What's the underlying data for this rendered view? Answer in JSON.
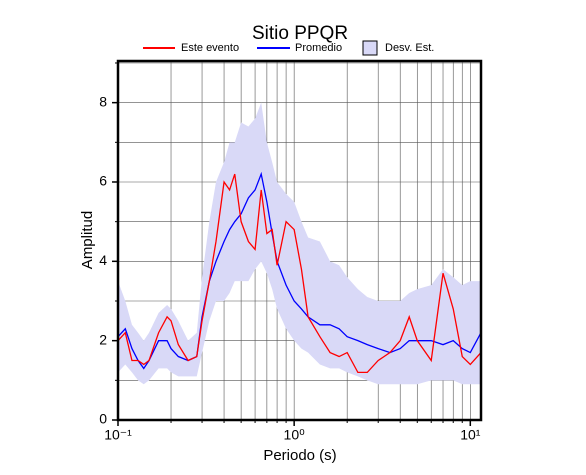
{
  "chart_data": {
    "type": "line",
    "title": "Sitio PPQR",
    "x_label": "Periodo (s)",
    "y_label": "Amplitud",
    "log_x": true,
    "grid": true,
    "xlim": [
      0.1,
      11.5
    ],
    "ylim": [
      0,
      9.05
    ],
    "xticks": [
      {
        "value": 0.1,
        "label": "10⁻¹"
      },
      {
        "value": 1,
        "label": "10⁰"
      },
      {
        "value": 10,
        "label": "10¹"
      }
    ],
    "xminor": [
      0.2,
      0.3,
      0.4,
      0.5,
      0.6,
      0.7,
      0.8,
      0.9,
      2,
      3,
      4,
      5,
      6,
      7,
      8,
      9
    ],
    "yticks": [
      0,
      2,
      4,
      6,
      8
    ],
    "yminor": [
      1,
      3,
      5,
      7,
      9
    ],
    "x": [
      0.1,
      0.11,
      0.12,
      0.13,
      0.14,
      0.15,
      0.17,
      0.19,
      0.2,
      0.22,
      0.25,
      0.28,
      0.3,
      0.33,
      0.36,
      0.4,
      0.43,
      0.46,
      0.5,
      0.55,
      0.6,
      0.65,
      0.7,
      0.75,
      0.8,
      0.9,
      1.0,
      1.1,
      1.2,
      1.4,
      1.6,
      1.8,
      2.0,
      2.3,
      2.6,
      3.0,
      3.5,
      4.0,
      4.5,
      5.0,
      6.0,
      7.0,
      8.0,
      9.0,
      10,
      11.5
    ],
    "band": {
      "name": "Desv. Est.",
      "color": "#d9d9f7",
      "upper": [
        3.5,
        3.0,
        2.4,
        2.2,
        2.0,
        2.2,
        2.7,
        2.9,
        2.8,
        2.5,
        2.0,
        2.2,
        3.6,
        5.0,
        6.0,
        6.5,
        7.0,
        7.0,
        7.5,
        7.4,
        7.6,
        8.0,
        7.0,
        6.5,
        6.0,
        5.7,
        5.5,
        5.0,
        4.6,
        4.5,
        4.0,
        3.9,
        3.6,
        3.3,
        3.1,
        3.0,
        3.0,
        3.0,
        3.2,
        3.3,
        3.4,
        3.8,
        3.6,
        3.4,
        3.5,
        3.5
      ],
      "lower": [
        1.2,
        1.4,
        1.2,
        1.0,
        0.9,
        1.0,
        1.3,
        1.3,
        1.2,
        1.1,
        1.1,
        1.1,
        1.7,
        2.5,
        3.0,
        3.0,
        3.2,
        3.5,
        3.5,
        3.5,
        3.8,
        4.0,
        3.7,
        3.3,
        2.8,
        2.3,
        2.0,
        1.8,
        1.7,
        1.4,
        1.3,
        1.3,
        1.2,
        1.1,
        1.0,
        0.9,
        0.9,
        0.9,
        0.9,
        0.9,
        1.0,
        1.0,
        1.0,
        0.9,
        0.9,
        0.9
      ]
    },
    "series": [
      {
        "name": "Este evento",
        "color": "#ff0000",
        "values": [
          2.0,
          2.2,
          1.5,
          1.5,
          1.4,
          1.5,
          2.2,
          2.6,
          2.5,
          1.9,
          1.5,
          1.6,
          2.5,
          3.5,
          4.5,
          6.0,
          5.8,
          6.2,
          5.0,
          4.5,
          4.3,
          5.8,
          4.7,
          4.8,
          3.9,
          5.0,
          4.8,
          3.8,
          2.6,
          2.1,
          1.7,
          1.6,
          1.7,
          1.2,
          1.2,
          1.5,
          1.7,
          2.0,
          2.6,
          2.0,
          1.5,
          3.7,
          2.8,
          1.6,
          1.4,
          1.7
        ]
      },
      {
        "name": "Promedio",
        "color": "#0000ff",
        "values": [
          2.1,
          2.3,
          1.8,
          1.5,
          1.3,
          1.5,
          2.0,
          2.0,
          1.8,
          1.6,
          1.5,
          1.6,
          2.6,
          3.5,
          4.0,
          4.5,
          4.8,
          5.0,
          5.2,
          5.6,
          5.8,
          6.2,
          5.5,
          4.7,
          4.0,
          3.4,
          3.0,
          2.8,
          2.6,
          2.4,
          2.4,
          2.3,
          2.1,
          2.0,
          1.9,
          1.8,
          1.7,
          1.8,
          2.0,
          2.0,
          2.0,
          1.9,
          2.0,
          1.8,
          1.7,
          2.2
        ]
      }
    ]
  }
}
